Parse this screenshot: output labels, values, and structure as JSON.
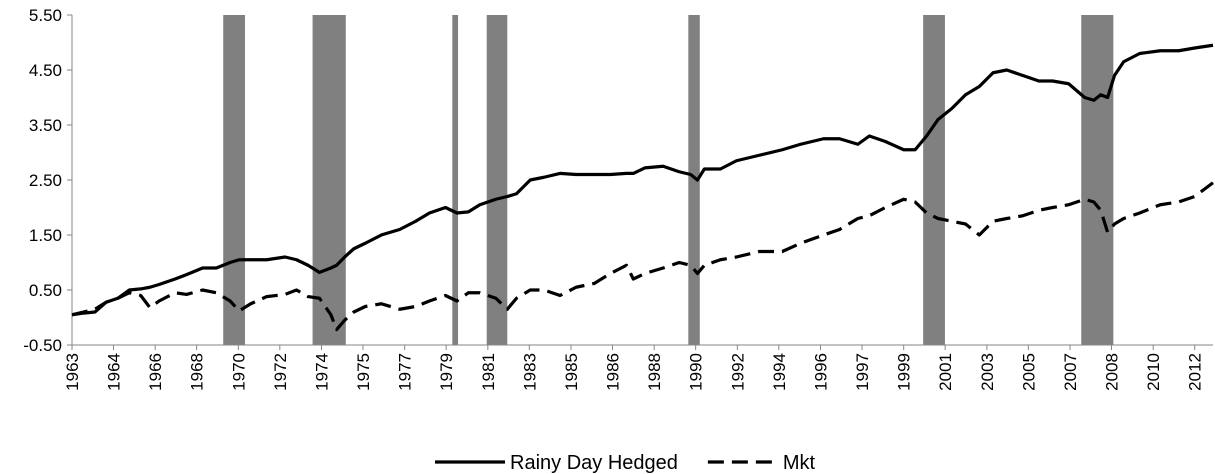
{
  "chart_data": {
    "type": "line",
    "x": [
      1963.0,
      1963.5,
      1964.0,
      1964.5,
      1965.0,
      1965.5,
      1966.0,
      1966.4,
      1966.8,
      1967.5,
      1968.0,
      1968.7,
      1969.3,
      1969.9,
      1970.3,
      1970.8,
      1971.5,
      1972.3,
      1972.8,
      1973.3,
      1973.8,
      1974.3,
      1974.55,
      1974.9,
      1975.3,
      1975.8,
      1976.5,
      1977.3,
      1978.0,
      1978.6,
      1979.3,
      1979.8,
      1980.3,
      1980.8,
      1981.5,
      1982.0,
      1982.4,
      1983.0,
      1983.6,
      1984.3,
      1985.0,
      1985.8,
      1986.5,
      1987.2,
      1987.5,
      1988.0,
      1988.8,
      1989.5,
      1990.0,
      1990.3,
      1990.6,
      1991.3,
      1992.0,
      1993.0,
      1994.0,
      1994.8,
      1995.8,
      1996.5,
      1997.3,
      1997.8,
      1998.5,
      1999.3,
      1999.8,
      2000.3,
      2000.8,
      2001.4,
      2002.0,
      2002.6,
      2003.2,
      2003.8,
      2004.5,
      2005.2,
      2005.8,
      2006.5,
      2007.2,
      2007.6,
      2007.9,
      2008.2,
      2008.5,
      2008.9,
      2009.6,
      2010.5,
      2011.3,
      2012.0,
      2012.8
    ],
    "series": [
      {
        "name": "Rainy Day Hedged",
        "color": "#000000",
        "dashed": false,
        "values": [
          0.05,
          0.08,
          0.1,
          0.28,
          0.35,
          0.5,
          0.52,
          0.55,
          0.6,
          0.7,
          0.78,
          0.9,
          0.9,
          1.0,
          1.05,
          1.05,
          1.05,
          1.1,
          1.05,
          0.95,
          0.82,
          0.9,
          0.95,
          1.1,
          1.25,
          1.35,
          1.5,
          1.6,
          1.75,
          1.9,
          2.0,
          1.9,
          1.92,
          2.05,
          2.15,
          2.2,
          2.25,
          2.5,
          2.55,
          2.62,
          2.6,
          2.6,
          2.6,
          2.62,
          2.62,
          2.72,
          2.75,
          2.65,
          2.6,
          2.5,
          2.7,
          2.7,
          2.85,
          2.95,
          3.05,
          3.15,
          3.25,
          3.25,
          3.15,
          3.3,
          3.2,
          3.05,
          3.05,
          3.3,
          3.6,
          3.8,
          4.05,
          4.2,
          4.45,
          4.5,
          4.4,
          4.3,
          4.3,
          4.25,
          4.0,
          3.95,
          4.05,
          4.0,
          4.4,
          4.65,
          4.8,
          4.85,
          4.85,
          4.9,
          4.95
        ]
      },
      {
        "name": "Mkt",
        "color": "#000000",
        "dashed": true,
        "values": [
          0.05,
          0.1,
          0.15,
          0.28,
          0.35,
          0.45,
          0.4,
          0.18,
          0.3,
          0.45,
          0.42,
          0.5,
          0.45,
          0.3,
          0.12,
          0.25,
          0.38,
          0.42,
          0.5,
          0.38,
          0.35,
          0.05,
          -0.22,
          -0.05,
          0.1,
          0.2,
          0.25,
          0.15,
          0.2,
          0.3,
          0.4,
          0.3,
          0.45,
          0.45,
          0.35,
          0.15,
          0.35,
          0.5,
          0.5,
          0.4,
          0.55,
          0.62,
          0.8,
          0.95,
          0.7,
          0.8,
          0.9,
          1.0,
          0.95,
          0.8,
          0.95,
          1.05,
          1.1,
          1.2,
          1.2,
          1.35,
          1.5,
          1.6,
          1.8,
          1.85,
          2.0,
          2.15,
          2.1,
          1.9,
          1.8,
          1.75,
          1.7,
          1.5,
          1.75,
          1.8,
          1.85,
          1.95,
          2.0,
          2.05,
          2.15,
          2.1,
          1.95,
          1.55,
          1.7,
          1.8,
          1.9,
          2.05,
          2.1,
          2.2,
          2.45
        ]
      }
    ],
    "shading": [
      [
        1969.6,
        1970.55
      ],
      [
        1973.5,
        1974.95
      ],
      [
        1979.6,
        1979.85
      ],
      [
        1981.1,
        1982.0
      ],
      [
        1989.9,
        1990.4
      ],
      [
        2000.15,
        2001.1
      ],
      [
        2007.05,
        2008.45
      ]
    ],
    "shading_color": "#808080",
    "xlim": [
      1963,
      2012.8
    ],
    "xticks": [
      {
        "value": 1963,
        "label": "1963"
      },
      {
        "value": 1964.81,
        "label": "1964"
      },
      {
        "value": 1966.63,
        "label": "1966"
      },
      {
        "value": 1968.44,
        "label": "1968"
      },
      {
        "value": 1970.26,
        "label": "1970"
      },
      {
        "value": 1972.07,
        "label": "1972"
      },
      {
        "value": 1973.89,
        "label": "1974"
      },
      {
        "value": 1975.7,
        "label": "1975"
      },
      {
        "value": 1977.52,
        "label": "1977"
      },
      {
        "value": 1979.33,
        "label": "1979"
      },
      {
        "value": 1981.15,
        "label": "1981"
      },
      {
        "value": 1982.96,
        "label": "1983"
      },
      {
        "value": 1984.78,
        "label": "1985"
      },
      {
        "value": 1986.59,
        "label": "1986"
      },
      {
        "value": 1988.41,
        "label": "1988"
      },
      {
        "value": 1990.22,
        "label": "1990"
      },
      {
        "value": 1992.04,
        "label": "1992"
      },
      {
        "value": 1993.85,
        "label": "1994"
      },
      {
        "value": 1995.67,
        "label": "1996"
      },
      {
        "value": 1997.48,
        "label": "1997"
      },
      {
        "value": 1999.3,
        "label": "1999"
      },
      {
        "value": 2001.11,
        "label": "2001"
      },
      {
        "value": 2002.93,
        "label": "2003"
      },
      {
        "value": 2004.74,
        "label": "2005"
      },
      {
        "value": 2006.56,
        "label": "2007"
      },
      {
        "value": 2008.37,
        "label": "2008"
      },
      {
        "value": 2010.19,
        "label": "2010"
      },
      {
        "value": 2012,
        "label": "2012"
      }
    ],
    "ylim": [
      -0.5,
      5.5
    ],
    "yticks": [
      {
        "value": -0.5,
        "label": "-0.50"
      },
      {
        "value": 0.5,
        "label": "0.50"
      },
      {
        "value": 1.5,
        "label": "1.50"
      },
      {
        "value": 2.5,
        "label": "2.50"
      },
      {
        "value": 3.5,
        "label": "3.50"
      },
      {
        "value": 4.5,
        "label": "4.50"
      },
      {
        "value": 5.5,
        "label": "5.50"
      }
    ],
    "legend": "bottom"
  }
}
